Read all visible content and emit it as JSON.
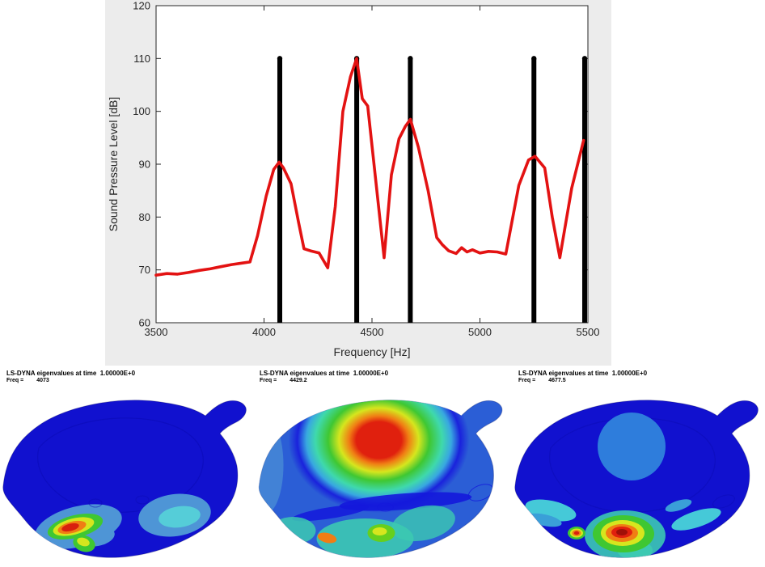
{
  "figure": {
    "description": "Sound pressure level spectrum with eigenfrequency stems above three LS-DYNA eigenmode contour plots of a golf driver head"
  },
  "chart_data": {
    "type": "line",
    "title": "",
    "xlabel": "Frequency [Hz]",
    "ylabel": "Sound Pressure Level [dB]",
    "xlim": [
      3500,
      5500
    ],
    "ylim": [
      60,
      120
    ],
    "x_ticks": [
      3500,
      4000,
      4500,
      5000,
      5500
    ],
    "y_ticks": [
      60,
      70,
      80,
      90,
      100,
      110,
      120
    ],
    "grid": false,
    "legend": false,
    "series": [
      {
        "name": "sound-pressure-level",
        "type": "line",
        "color": "#e31212",
        "line_width": 3.6,
        "x": [
          3500,
          3550,
          3600,
          3650,
          3700,
          3750,
          3800,
          3850,
          3900,
          3935,
          3970,
          4010,
          4045,
          4070,
          4090,
          4125,
          4160,
          4185,
          4215,
          4255,
          4295,
          4330,
          4365,
          4400,
          4429,
          4455,
          4480,
          4556,
          4590,
          4625,
          4655,
          4678,
          4715,
          4760,
          4800,
          4825,
          4855,
          4890,
          4915,
          4940,
          4965,
          5000,
          5040,
          5080,
          5120,
          5180,
          5225,
          5255,
          5300,
          5335,
          5370,
          5425,
          5480
        ],
        "y": [
          69.0,
          69.3,
          69.2,
          69.5,
          69.9,
          70.2,
          70.6,
          71.0,
          71.3,
          71.5,
          76.5,
          84.0,
          89.0,
          90.4,
          89.3,
          86.3,
          79.0,
          74.0,
          73.6,
          73.2,
          70.4,
          82.0,
          100.0,
          106.5,
          110.0,
          102.4,
          101.0,
          72.3,
          88.0,
          94.8,
          97.2,
          98.5,
          93.2,
          85.0,
          76.1,
          74.8,
          73.6,
          73.1,
          74.2,
          73.4,
          73.8,
          73.2,
          73.5,
          73.4,
          73.0,
          86.0,
          90.8,
          91.5,
          89.3,
          80.0,
          72.3,
          85.5,
          94.5
        ]
      },
      {
        "name": "eigenfrequency-stems",
        "type": "stem",
        "color": "#000000",
        "line_width": 6,
        "baseline": 60,
        "x": [
          4073,
          4429.2,
          4677.5,
          5250,
          5485
        ],
        "y": [
          110,
          110,
          110,
          110,
          110
        ]
      }
    ]
  },
  "modes": [
    {
      "header": "LS-DYNA eigenvalues at time  1.00000E+0",
      "freq_prefix": "Freq =",
      "freq_value": "4073",
      "shape_note": "red hotspot on lower-left sole/toe, cyan patch lower-right"
    },
    {
      "header": "LS-DYNA eigenvalues at time  1.00000E+0",
      "freq_prefix": "Freq =",
      "freq_value": "4429.2",
      "shape_note": "large rainbow bullseye centered on crown"
    },
    {
      "header": "LS-DYNA eigenvalues at time  1.00000E+0",
      "freq_prefix": "Freq =",
      "freq_value": "4677.5",
      "shape_note": "red hotspot on lower-center sole, light blue disc on crown"
    }
  ],
  "colors": {
    "page_bg": "#ffffff",
    "panel_bg": "#ececec",
    "plot_bg": "#ffffff",
    "axis_color": "#262626",
    "line_red": "#e31212",
    "stem_black": "#000000",
    "head_dark_blue": "#1111cf",
    "head_mid_blue": "#2b5ed6",
    "crown_patch_blue": "#2e7ddc",
    "contour_palette": [
      "#1111cf",
      "#2b5ed6",
      "#4e95d6",
      "#4ac9d8",
      "#3cc9b2",
      "#3fc732",
      "#66cf1d",
      "#d6e61e",
      "#f07d14",
      "#e0200e",
      "#a01008"
    ]
  }
}
